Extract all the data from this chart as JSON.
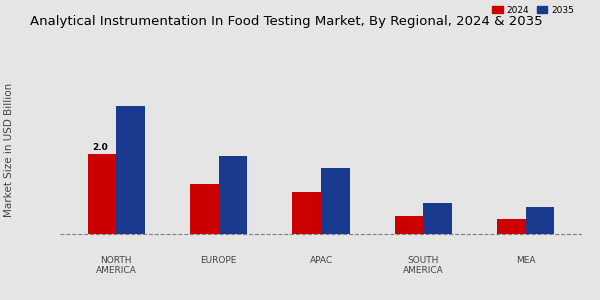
{
  "title": "Analytical Instrumentation In Food Testing Market, By Regional, 2024 & 2035",
  "categories": [
    "NORTH\nAMERICA",
    "EUROPE",
    "APAC",
    "SOUTH\nAMERICA",
    "MEA"
  ],
  "values_2024": [
    2.0,
    1.25,
    1.05,
    0.45,
    0.38
  ],
  "values_2035": [
    3.2,
    1.95,
    1.65,
    0.78,
    0.68
  ],
  "color_2024": "#cc0000",
  "color_2035": "#1a3a8f",
  "ylabel": "Market Size in USD Billion",
  "legend_labels": [
    "2024",
    "2035"
  ],
  "annotation_text": "2.0",
  "background_color": "#e5e5e5",
  "bar_width": 0.28,
  "title_fontsize": 9.5,
  "label_fontsize": 6.5,
  "ylabel_fontsize": 7.5,
  "red_strip_color": "#bb0000",
  "ylim_max": 4.2
}
